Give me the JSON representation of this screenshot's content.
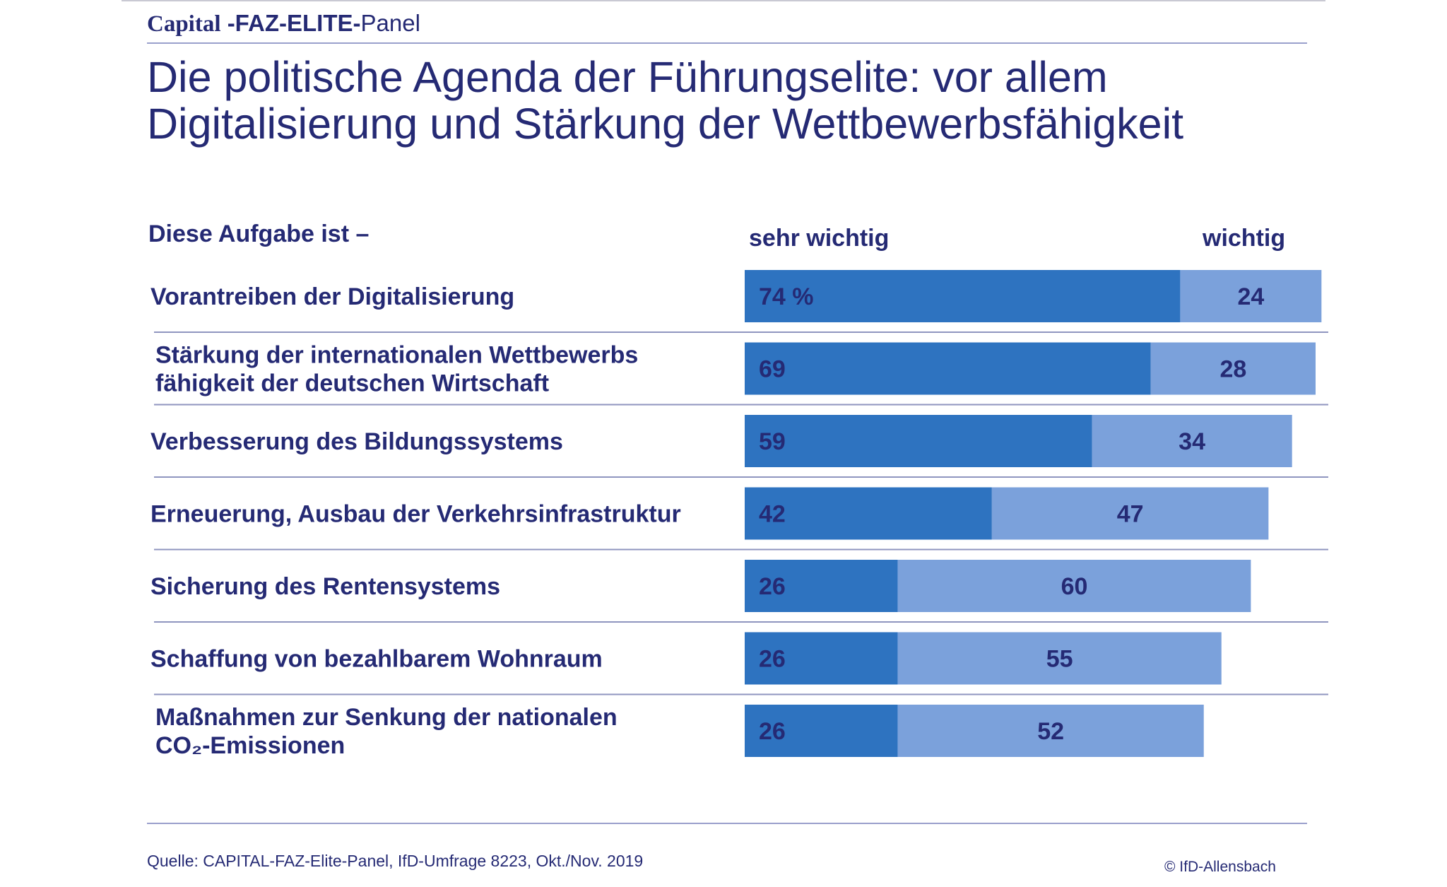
{
  "brand": {
    "capital": "Capital",
    "faz": "-FAZ-ELITE-",
    "panel": "Panel"
  },
  "title_lines": [
    "Die politische Agenda der Führungselite: vor allem",
    "Digitalisierung und Stärkung der Wettbewerbsfähigkeit"
  ],
  "header": {
    "question": "Diese Aufgabe ist  –"
  },
  "chart_data": {
    "type": "bar",
    "stacked": true,
    "orientation": "horizontal",
    "categories": [
      [
        "Vorantreiben der Digitalisierung"
      ],
      [
        "Stärkung der internationalen Wettbewerbs",
        "fähigkeit der deutschen Wirtschaft"
      ],
      [
        "Verbesserung des Bildungssystems"
      ],
      [
        "Erneuerung, Ausbau der Verkehrsinfrastruktur"
      ],
      [
        "Sicherung des Rentensystems"
      ],
      [
        "Schaffung von bezahlbarem Wohnraum"
      ],
      [
        "Maßnahmen zur Senkung der nationalen",
        "CO₂-Emissionen"
      ]
    ],
    "series": [
      {
        "name": "sehr wichtig",
        "values": [
          74,
          69,
          59,
          42,
          26,
          26,
          26
        ],
        "color": "#2e73c0"
      },
      {
        "name": "wichtig",
        "values": [
          24,
          28,
          34,
          47,
          60,
          55,
          52
        ],
        "color": "#7ba1db"
      }
    ],
    "value_labels": {
      "sehr wichtig": [
        "74 %",
        "69",
        "59",
        "42",
        "26",
        "26",
        "26"
      ],
      "wichtig": [
        "24",
        "28",
        "34",
        "47",
        "60",
        "55",
        "52"
      ]
    },
    "xlim": [
      0,
      100
    ],
    "label_color": "#252a74",
    "separator_color": "#8f95bf"
  },
  "footer": {
    "source": "Quelle: CAPITAL-FAZ-Elite-Panel, IfD-Umfrage 8223, Okt./Nov. 2019",
    "copyright": "© IfD-Allensbach"
  }
}
